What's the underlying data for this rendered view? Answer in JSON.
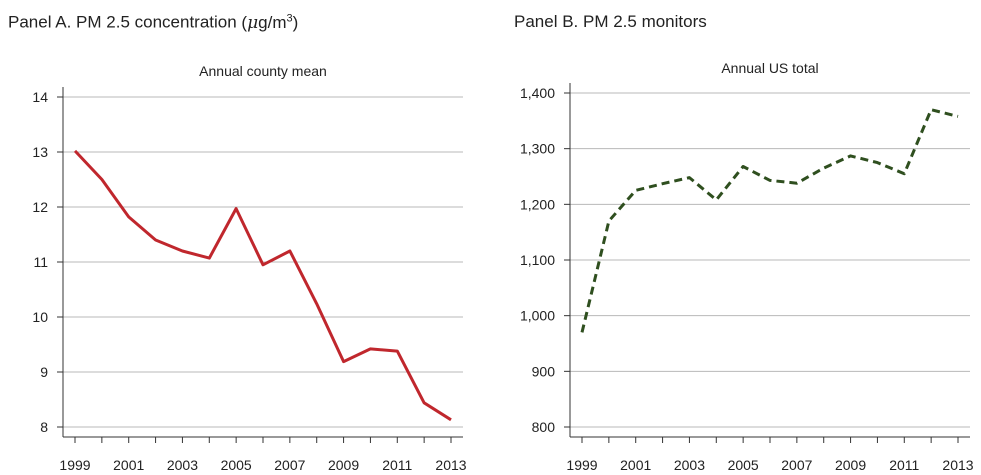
{
  "panel_a": {
    "title_main": "Panel A. PM 2.5 concentration ",
    "title_unit_open": "(",
    "title_unit_mu": "μ",
    "title_unit_rest": "g/m",
    "title_unit_sup": "3",
    "title_unit_close": ")"
  },
  "panel_b": {
    "title": "Panel B. PM 2.5 monitors"
  },
  "colors": {
    "series_a": "#c0272d",
    "series_b": "#2f4f1f"
  },
  "chart_data": [
    {
      "type": "line",
      "title": "Annual county mean",
      "xlabel": "",
      "ylabel": "",
      "ylim": [
        7.8,
        14.2
      ],
      "xlim": [
        1998.8,
        2014.2
      ],
      "grid": true,
      "line_style": "solid",
      "yticks": [
        8,
        9,
        10,
        11,
        12,
        13,
        14
      ],
      "ytick_labels": [
        "8",
        "9",
        "10",
        "11",
        "12",
        "13",
        "14"
      ],
      "xticks": [
        1999,
        2001,
        2003,
        2005,
        2007,
        2009,
        2011,
        2013
      ],
      "xtick_labels": [
        "1999",
        "2001",
        "2003",
        "2005",
        "2007",
        "2009",
        "2011",
        "2013"
      ],
      "x": [
        1999,
        2000,
        2001,
        2002,
        2003,
        2004,
        2005,
        2006,
        2007,
        2008,
        2009,
        2010,
        2011,
        2012,
        2013
      ],
      "values": [
        13.02,
        12.5,
        11.82,
        11.4,
        11.2,
        11.07,
        11.97,
        10.95,
        11.2,
        10.24,
        9.19,
        9.42,
        9.38,
        8.44,
        8.13
      ]
    },
    {
      "type": "line",
      "title": "Annual US total",
      "xlabel": "",
      "ylabel": "",
      "ylim": [
        780,
        1420
      ],
      "xlim": [
        1998.8,
        2014.2
      ],
      "grid": true,
      "line_style": "dashed",
      "yticks": [
        800,
        900,
        1000,
        1100,
        1200,
        1300,
        1400
      ],
      "ytick_labels": [
        "800",
        "900",
        "1,000",
        "1,100",
        "1,200",
        "1,300",
        "1,400"
      ],
      "xticks": [
        1999,
        2001,
        2003,
        2005,
        2007,
        2009,
        2011,
        2013
      ],
      "xtick_labels": [
        "1999",
        "2001",
        "2003",
        "2005",
        "2007",
        "2009",
        "2011",
        "2013"
      ],
      "x": [
        1999,
        2000,
        2001,
        2002,
        2003,
        2004,
        2005,
        2006,
        2007,
        2008,
        2009,
        2010,
        2011,
        2012,
        2013
      ],
      "values": [
        970,
        1170,
        1225,
        1237,
        1248,
        1208,
        1268,
        1243,
        1238,
        1265,
        1287,
        1275,
        1255,
        1370,
        1358
      ]
    }
  ]
}
